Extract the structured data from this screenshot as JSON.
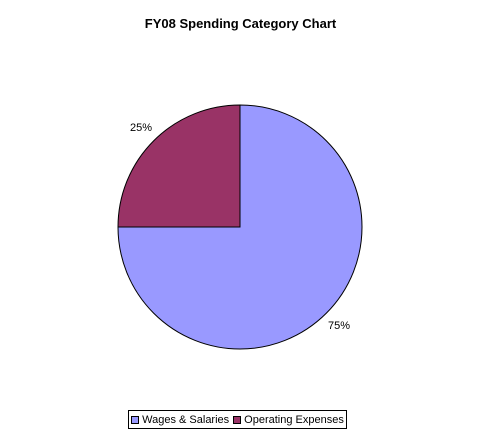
{
  "chart_data": {
    "type": "pie",
    "title": "FY08 Spending Category Chart",
    "categories": [
      "Wages & Salaries",
      "Operating Expenses"
    ],
    "values": [
      75,
      25
    ],
    "labels": [
      "75%",
      "25%"
    ],
    "colors": [
      "#9999FF",
      "#993366"
    ],
    "legend_position": "bottom"
  }
}
